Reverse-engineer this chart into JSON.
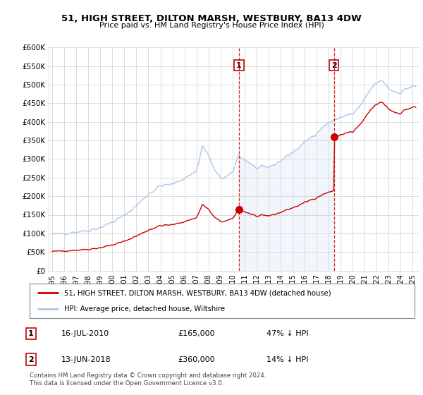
{
  "title": "51, HIGH STREET, DILTON MARSH, WESTBURY, BA13 4DW",
  "subtitle": "Price paid vs. HM Land Registry's House Price Index (HPI)",
  "legend_line1": "51, HIGH STREET, DILTON MARSH, WESTBURY, BA13 4DW (detached house)",
  "legend_line2": "HPI: Average price, detached house, Wiltshire",
  "annotation1_date": "16-JUL-2010",
  "annotation1_price": "£165,000",
  "annotation1_hpi": "47% ↓ HPI",
  "annotation2_date": "13-JUN-2018",
  "annotation2_price": "£360,000",
  "annotation2_hpi": "14% ↓ HPI",
  "footer": "Contains HM Land Registry data © Crown copyright and database right 2024.\nThis data is licensed under the Open Government Licence v3.0.",
  "hpi_color": "#a8c8e8",
  "hpi_fill_color": "#d8e8f8",
  "sale_color": "#cc0000",
  "vline_color": "#cc0000",
  "bg_color": "#ffffff",
  "grid_color": "#cccccc",
  "ylim": [
    0,
    600000
  ],
  "yticks": [
    0,
    50000,
    100000,
    150000,
    200000,
    250000,
    300000,
    350000,
    400000,
    450000,
    500000,
    550000,
    600000
  ],
  "ytick_labels": [
    "£0",
    "£50K",
    "£100K",
    "£150K",
    "£200K",
    "£250K",
    "£300K",
    "£350K",
    "£400K",
    "£450K",
    "£500K",
    "£550K",
    "£600K"
  ],
  "sale1_x": 2010.54,
  "sale1_y": 165000,
  "sale2_x": 2018.45,
  "sale2_y": 360000,
  "xmin": 1995.0,
  "xmax": 2025.5
}
